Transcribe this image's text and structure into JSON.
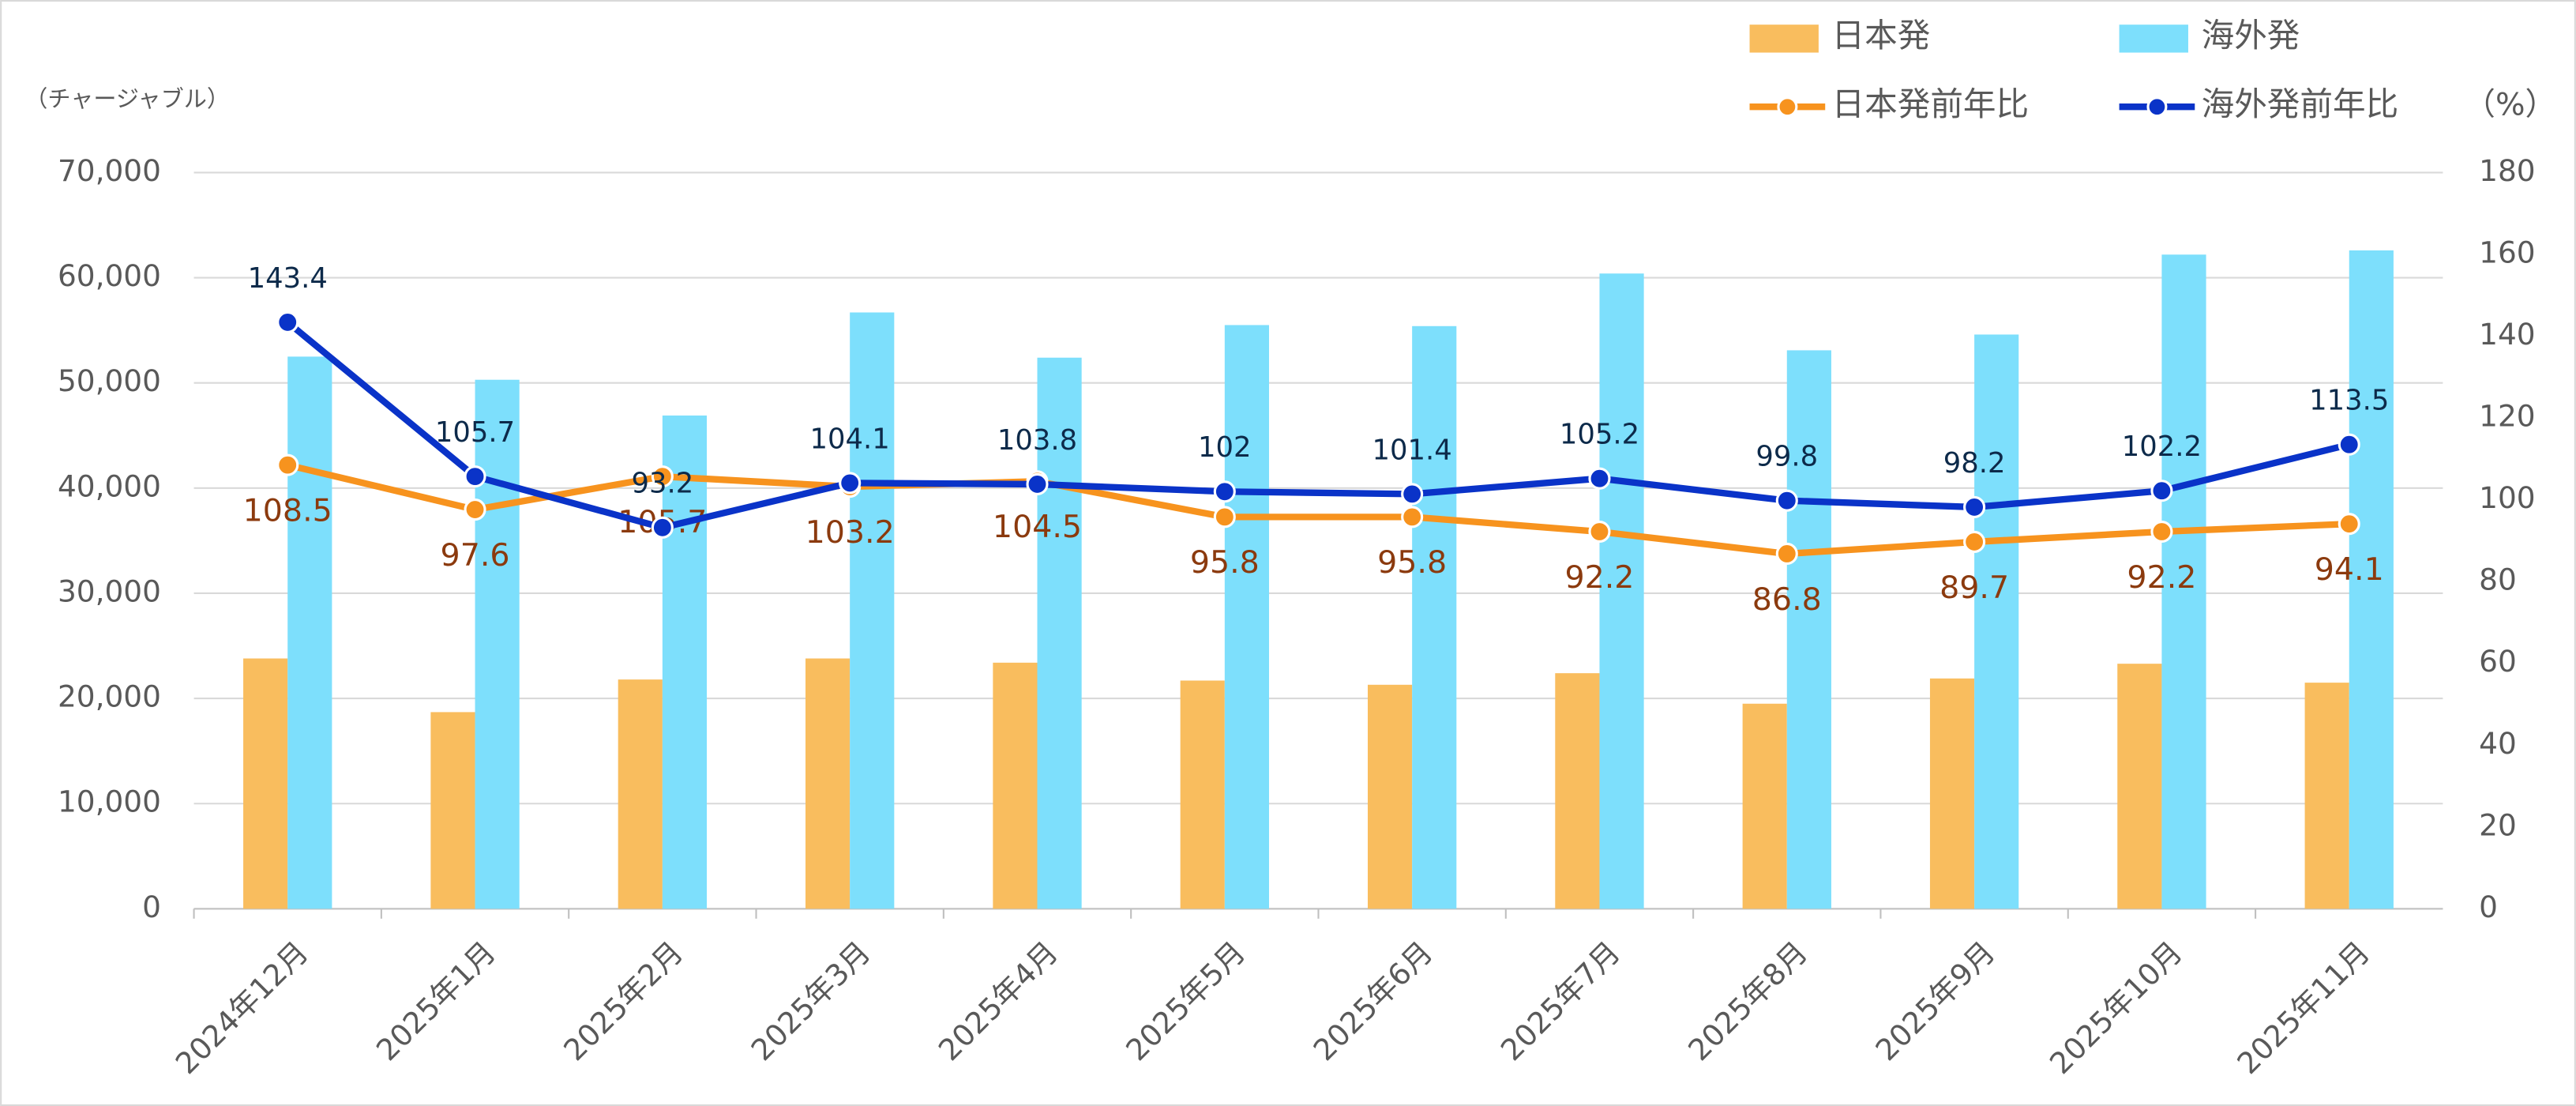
{
  "chart_data": {
    "type": "bar-line",
    "y_unit_label": "（チャージャブル）",
    "y2_unit_label": "（%）",
    "categories": [
      "2024年12月",
      "2025年1月",
      "2025年2月",
      "2025年3月",
      "2025年4月",
      "2025年5月",
      "2025年6月",
      "2025年7月",
      "2025年8月",
      "2025年9月",
      "2025年10月",
      "2025年11月"
    ],
    "series": [
      {
        "name": "日本発",
        "type": "bar",
        "color": "#f9bd5e",
        "values": [
          23800,
          18700,
          21800,
          23800,
          23400,
          21700,
          21300,
          22400,
          19500,
          21900,
          23300,
          21500
        ]
      },
      {
        "name": "海外発",
        "type": "bar",
        "color": "#7ddffc",
        "values": [
          52500,
          50300,
          46900,
          56700,
          52400,
          55500,
          55400,
          60400,
          53100,
          54600,
          62200,
          62600
        ]
      },
      {
        "name": "日本発前年比",
        "type": "line",
        "axis": "y2",
        "color": "#f7931e",
        "label_color": "#8b3a0e",
        "values": [
          108.5,
          97.6,
          105.7,
          103.2,
          104.5,
          95.8,
          95.8,
          92.2,
          86.8,
          89.7,
          92.2,
          94.1
        ]
      },
      {
        "name": "海外発前年比",
        "type": "line",
        "axis": "y2",
        "color": "#0a33c8",
        "label_color": "#0d2a4a",
        "values": [
          143.4,
          105.7,
          93.2,
          104.1,
          103.8,
          102,
          101.4,
          105.2,
          99.8,
          98.2,
          102.2,
          113.5
        ]
      }
    ],
    "ylim": [
      0,
      70000
    ],
    "yticks": [
      0,
      {
        "value": 10000,
        "label": "10,000"
      },
      {
        "value": 20000,
        "label": "20,000"
      },
      {
        "value": 30000,
        "label": "30,000"
      },
      {
        "value": 40000,
        "label": "40,000"
      },
      {
        "value": 50000,
        "label": "50,000"
      },
      {
        "value": 60000,
        "label": "60,000"
      },
      {
        "value": 70000,
        "label": "70,000"
      }
    ],
    "y2lim": [
      0,
      180
    ],
    "y2ticks": [
      0,
      20,
      40,
      60,
      80,
      100,
      120,
      140,
      160,
      180
    ],
    "grid": true
  }
}
